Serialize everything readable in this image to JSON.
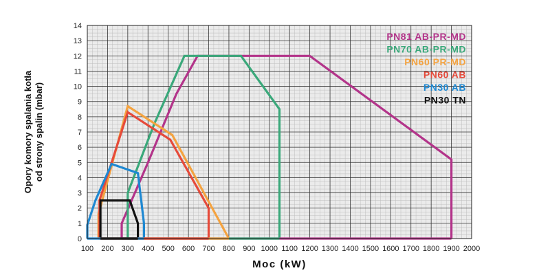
{
  "chart_data": {
    "type": "line",
    "xlabel": "Moc (kW)",
    "ylabel_lines": [
      "Opory komory spalania kotła",
      "od strony spalin (mbar)"
    ],
    "xlim": [
      100,
      2000
    ],
    "ylim": [
      0,
      14
    ],
    "x_ticks": [
      100,
      200,
      300,
      400,
      500,
      600,
      700,
      800,
      900,
      1000,
      1100,
      1200,
      1300,
      1400,
      1500,
      1600,
      1700,
      1800,
      1900,
      2000
    ],
    "y_ticks": [
      0,
      1,
      2,
      3,
      4,
      5,
      6,
      7,
      8,
      9,
      10,
      11,
      12,
      13,
      14
    ],
    "grid": true,
    "minor_grid": true,
    "legend_position": "top-right",
    "series": [
      {
        "name": "PN81 AB-PR-MD",
        "color": "#b3348a",
        "points": [
          [
            270,
            0
          ],
          [
            270,
            1
          ],
          [
            400,
            5
          ],
          [
            540,
            9.5
          ],
          [
            645,
            12
          ],
          [
            1200,
            12
          ],
          [
            1900,
            5.2
          ],
          [
            1900,
            0
          ]
        ]
      },
      {
        "name": "PN70 AB-PR-MD",
        "color": "#3aa87a",
        "points": [
          [
            300,
            0
          ],
          [
            300,
            3
          ],
          [
            430,
            7.5
          ],
          [
            580,
            12
          ],
          [
            860,
            12
          ],
          [
            1050,
            8.5
          ],
          [
            1050,
            0
          ]
        ]
      },
      {
        "name": "PN60 PR-MD",
        "color": "#f4a340",
        "points": [
          [
            155,
            0
          ],
          [
            155,
            1.6
          ],
          [
            300,
            8.7
          ],
          [
            520,
            6.8
          ],
          [
            800,
            0
          ]
        ]
      },
      {
        "name": "PN60 AB",
        "color": "#e64a3a",
        "points": [
          [
            160,
            0
          ],
          [
            160,
            2.5
          ],
          [
            300,
            8.3
          ],
          [
            510,
            6.5
          ],
          [
            700,
            2
          ],
          [
            700,
            0
          ]
        ]
      },
      {
        "name": "PN30 AB",
        "color": "#1e88d2",
        "points": [
          [
            100,
            0
          ],
          [
            100,
            0.9
          ],
          [
            140,
            2.5
          ],
          [
            220,
            4.9
          ],
          [
            350,
            4.3
          ],
          [
            380,
            1.0
          ],
          [
            380,
            0
          ]
        ]
      },
      {
        "name": "PN30 TN",
        "color": "#111111",
        "points": [
          [
            165,
            0
          ],
          [
            165,
            2.5
          ],
          [
            310,
            2.5
          ],
          [
            350,
            1.0
          ],
          [
            350,
            0
          ]
        ]
      }
    ]
  }
}
